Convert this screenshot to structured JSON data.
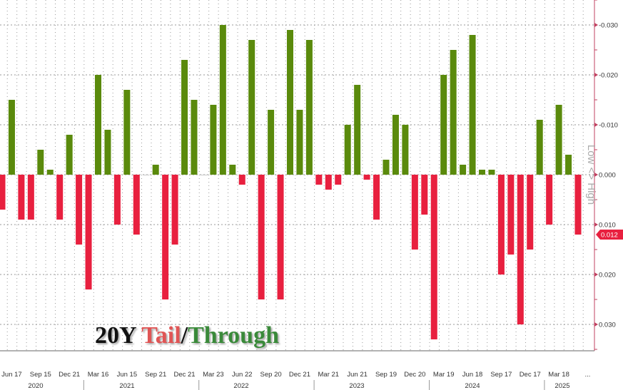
{
  "chart_data": {
    "type": "bar",
    "title": "20Y Tail/Through",
    "title_parts": {
      "instrument": "20Y",
      "tail": "Tail",
      "sep": "/",
      "through": "Through"
    },
    "ylabel": "Low <> High",
    "y_inverted": true,
    "ylim": [
      -0.035,
      0.0355
    ],
    "yticks": [
      -0.03,
      -0.02,
      -0.01,
      0.0,
      0.01,
      0.02,
      0.03
    ],
    "ytick_labels": [
      "-0.030",
      "-0.020",
      "-0.010",
      "0.000",
      "0.010",
      "0.020",
      "0.030"
    ],
    "grid": true,
    "last_value_label": "0.012",
    "xtick_labels": [
      "Jun 17",
      "Sep 15",
      "Dec 21",
      "Mar 16",
      "Jun 15",
      "Sep 21",
      "Dec 21",
      "Mar 23",
      "Jun 22",
      "Sep 20",
      "Dec 21",
      "Mar 21",
      "Jun 21",
      "Sep 19",
      "Dec 20",
      "Mar 19",
      "Jun 18",
      "Sep 17",
      "Dec 17",
      "Mar 18",
      "..."
    ],
    "year_labels": [
      "2020",
      "2021",
      "2022",
      "2023",
      "2024",
      "2025"
    ],
    "values": [
      0.007,
      -0.015,
      0.009,
      0.009,
      -0.005,
      -0.001,
      0.009,
      -0.008,
      0.014,
      0.023,
      -0.02,
      -0.009,
      0.01,
      -0.017,
      0.012,
      0.0,
      -0.002,
      0.025,
      0.014,
      -0.023,
      -0.015,
      0.0,
      -0.014,
      -0.03,
      -0.002,
      0.002,
      -0.027,
      0.025,
      -0.013,
      0.025,
      -0.029,
      -0.013,
      -0.027,
      0.002,
      0.003,
      0.002,
      -0.01,
      -0.018,
      0.001,
      0.009,
      -0.003,
      -0.012,
      -0.01,
      0.015,
      0.008,
      0.033,
      -0.02,
      -0.025,
      -0.002,
      -0.028,
      -0.001,
      -0.001,
      0.02,
      0.016,
      0.03,
      0.015,
      -0.011,
      0.01,
      -0.014,
      -0.004,
      0.012
    ],
    "colors": {
      "through": "#5a8a0c",
      "tail": "#e8203f",
      "axis": "#c04060",
      "grid": "#999999"
    }
  }
}
